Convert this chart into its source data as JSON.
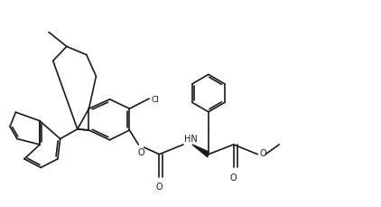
{
  "background_color": "#ffffff",
  "line_color": "#1a1a1a",
  "line_width": 1.2,
  "dbo": 0.055,
  "figsize": [
    4.22,
    2.3
  ],
  "dpi": 100,
  "xlim": [
    0,
    10.5
  ],
  "ylim": [
    0,
    5.75
  ]
}
